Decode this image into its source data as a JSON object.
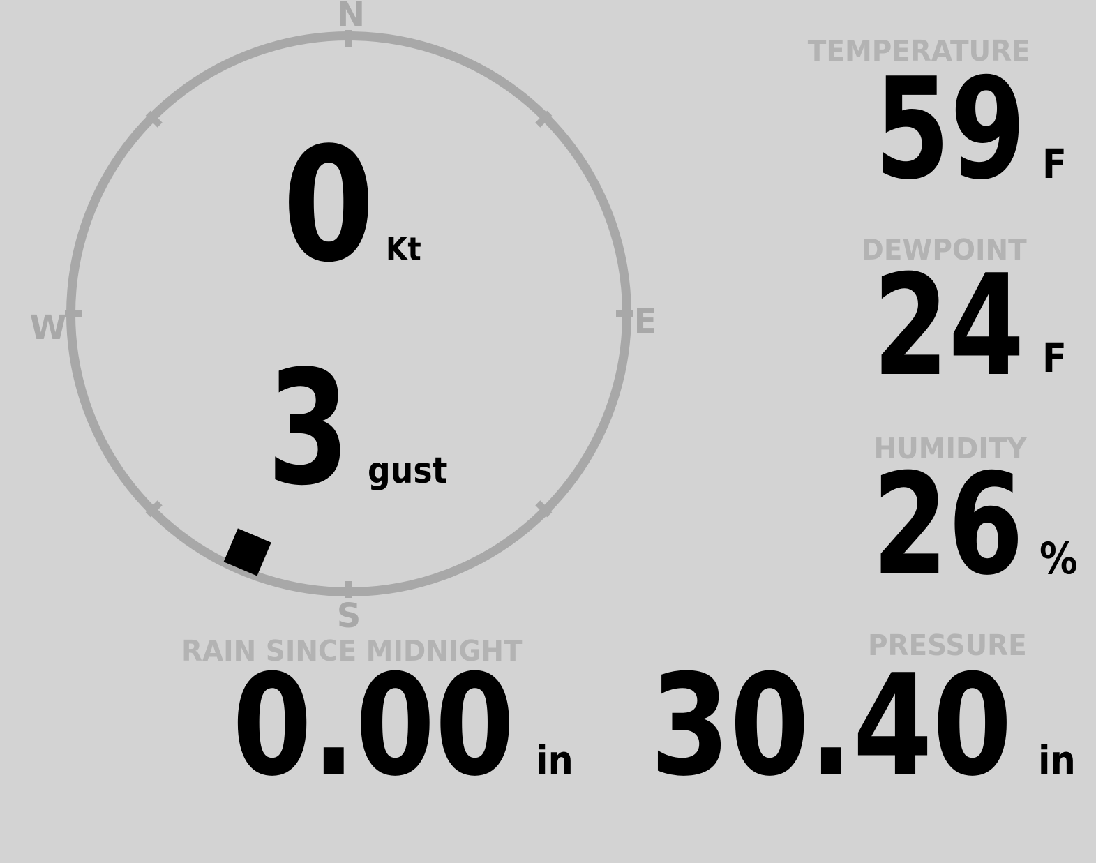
{
  "console": {
    "background_color": "#d3d3d3",
    "gauge_color": "#a8a8a8",
    "label_color": "#b3b3b3",
    "value_color": "#000000"
  },
  "wind": {
    "compass": {
      "north": "N",
      "east": "E",
      "south": "S",
      "west": "W"
    },
    "speed": {
      "value": "0",
      "unit": "Kt"
    },
    "gust": {
      "value": "3",
      "unit": "gust"
    },
    "direction_degrees": 203
  },
  "temperature": {
    "label": "TEMPERATURE",
    "value": "59",
    "unit": "F"
  },
  "dewpoint": {
    "label": "DEWPOINT",
    "value": "24",
    "unit": "F"
  },
  "humidity": {
    "label": "HUMIDITY",
    "value": "26",
    "unit": "%"
  },
  "rain_since_midnight": {
    "label": "RAIN SINCE MIDNIGHT",
    "value": "0.00",
    "unit": "in"
  },
  "pressure": {
    "label": "PRESSURE",
    "value": "30.40",
    "unit": "in"
  }
}
